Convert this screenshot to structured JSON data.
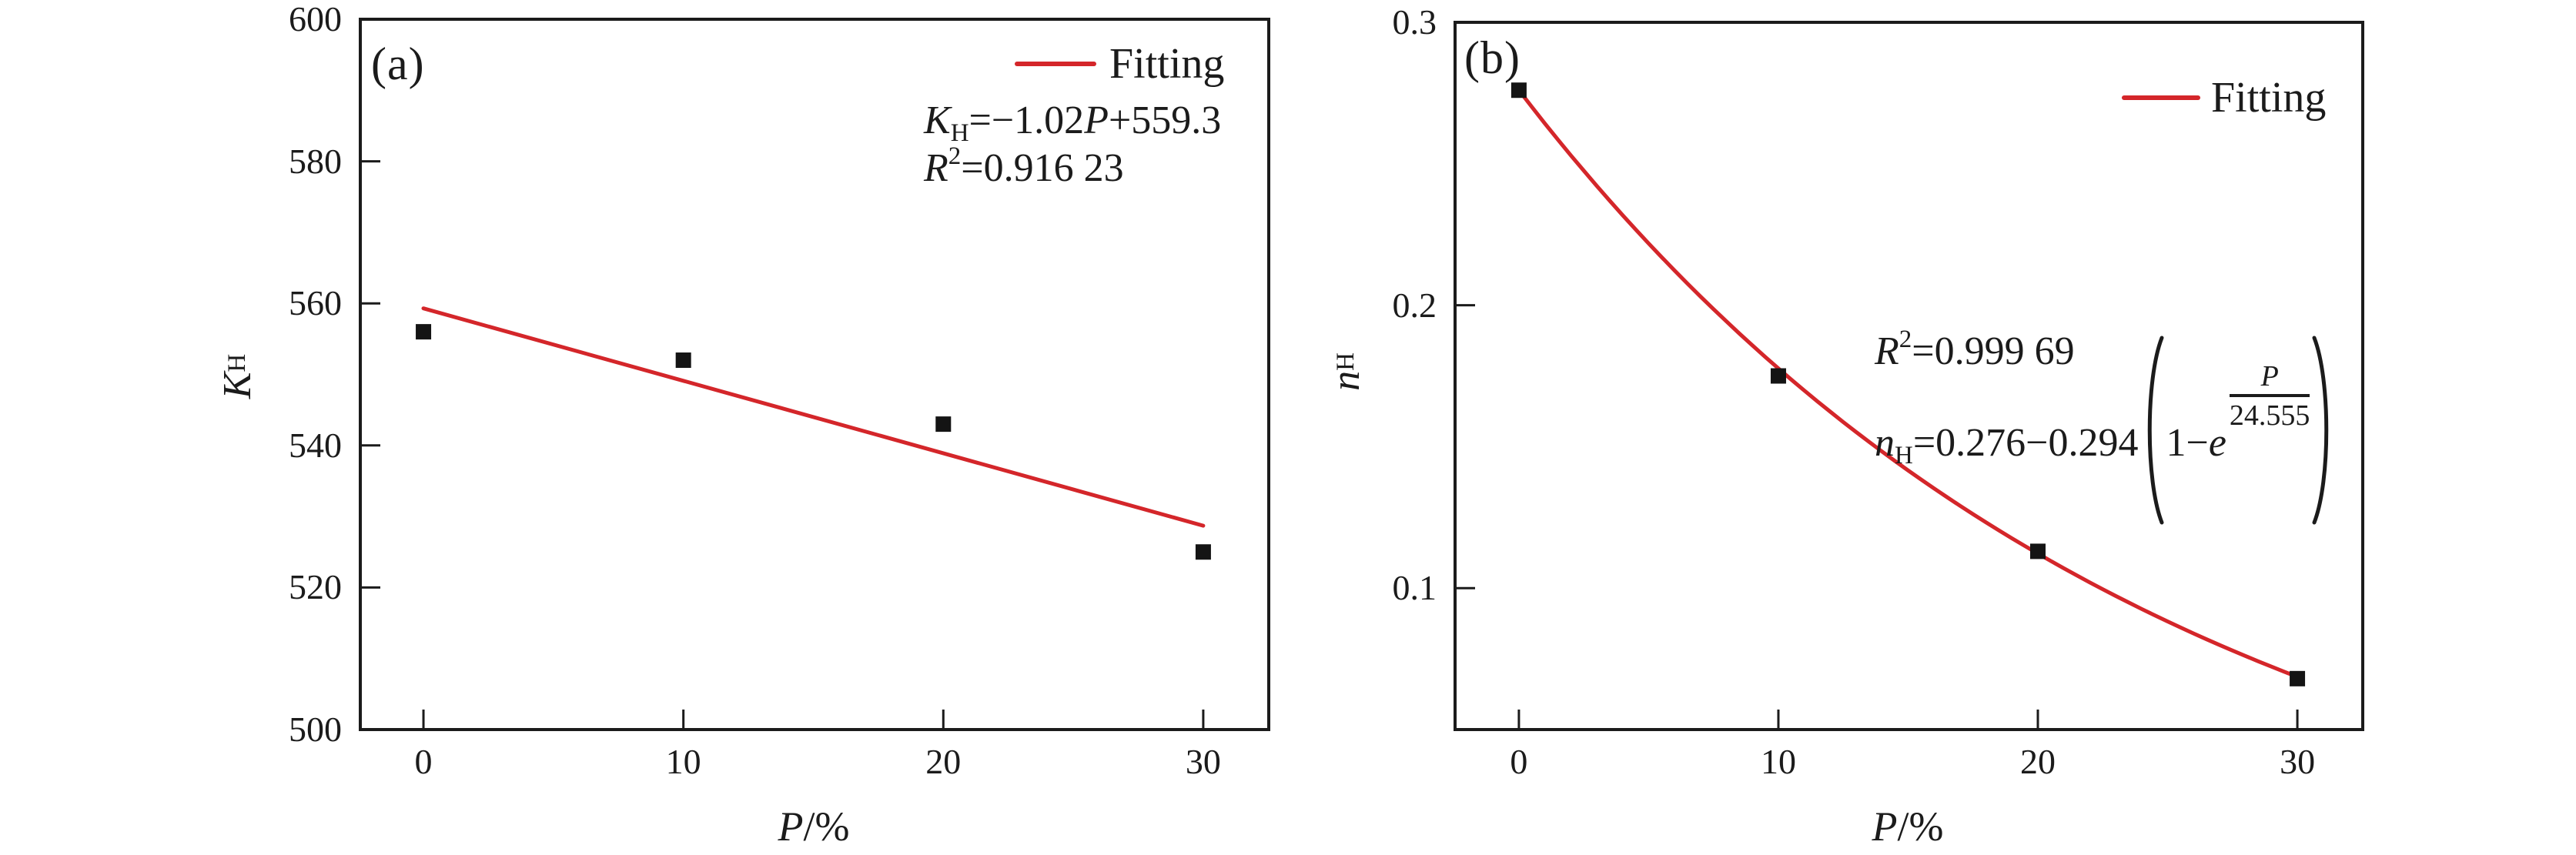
{
  "figure": {
    "background": "#ffffff",
    "accent_red": "#d4262a",
    "ink": "#1b1b1b",
    "marker_color": "#141414"
  },
  "chart_data": [
    {
      "type": "scatter",
      "panel_label": "(a)",
      "legend_label": "Fitting",
      "legend_position": "top-right",
      "xlabel": {
        "var": "P",
        "rest": "/%"
      },
      "ylabel": {
        "var": "K",
        "sub": "H"
      },
      "x": [
        0,
        10,
        20,
        30
      ],
      "y": [
        556,
        552,
        543,
        525
      ],
      "xticks": [
        0,
        10,
        20,
        30
      ],
      "yticks": [
        500,
        520,
        540,
        560,
        580,
        600
      ],
      "xlim": [
        -2.43,
        32.52
      ],
      "ylim": [
        500,
        600
      ],
      "grid": false,
      "fit": {
        "kind": "linear",
        "slope": -1.02,
        "intercept": 559.3,
        "domain": [
          0,
          30
        ]
      },
      "equation": {
        "lhs": "K",
        "lhs_sub": "H",
        "mid": "=−1.02",
        "var": "P",
        "tail": "+559.3"
      },
      "r2": {
        "base": "R",
        "sup": "2",
        "rest": "=0.916 23"
      }
    },
    {
      "type": "scatter",
      "panel_label": "(b)",
      "legend_label": "Fitting",
      "legend_position": "top-right",
      "xlabel": {
        "var": "P",
        "rest": "/%"
      },
      "ylabel": {
        "var": "n",
        "sub": "H"
      },
      "x": [
        0,
        10,
        20,
        30
      ],
      "y": [
        0.276,
        0.175,
        0.113,
        0.068
      ],
      "xticks": [
        0,
        10,
        20,
        30
      ],
      "yticks": [
        0.1,
        0.2,
        0.3
      ],
      "xlim": [
        -2.46,
        32.52
      ],
      "ylim": [
        0.05,
        0.3
      ],
      "grid": false,
      "fit": {
        "kind": "exp_decay",
        "a": 0.276,
        "b": 0.294,
        "tau": 24.555,
        "domain": [
          0,
          30
        ]
      },
      "equation": {
        "lhs": "n",
        "lhs_sub": "H",
        "mid": "=0.276−0.294",
        "inner": "1−",
        "e": "e",
        "frac_num": "P",
        "frac_den": "24.555"
      },
      "r2": {
        "base": "R",
        "sup": "2",
        "rest": "=0.999 69"
      }
    }
  ]
}
